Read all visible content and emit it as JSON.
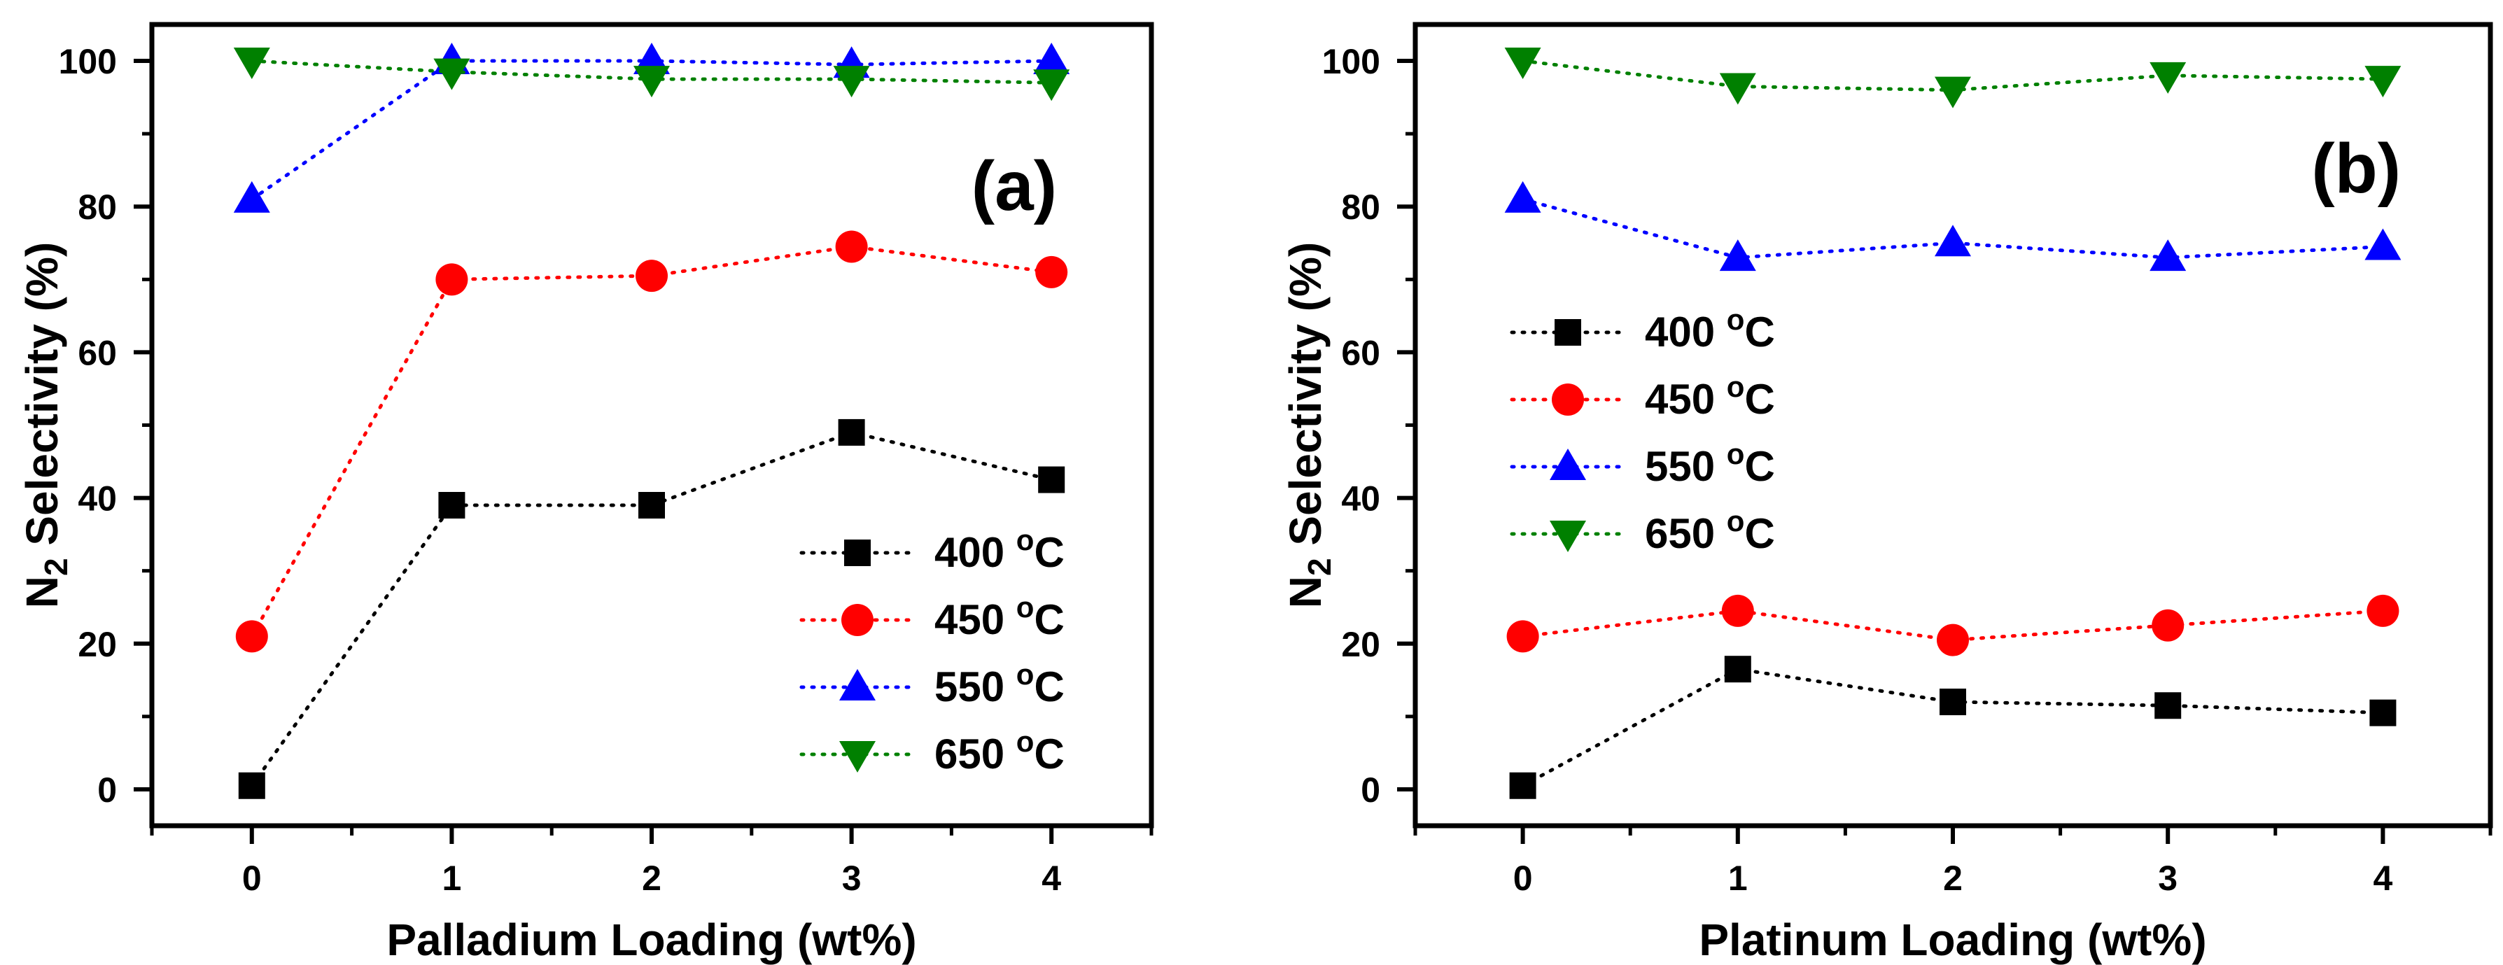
{
  "colors": {
    "s400": "#000000",
    "s450": "#ff0000",
    "s550": "#0000ff",
    "s650": "#008000"
  },
  "chart_data": [
    {
      "type": "scatter",
      "panel_label": "(a)",
      "xlabel": "Palladium Loading (wt%)",
      "ylabel_main": "N",
      "ylabel_sub": "2",
      "ylabel_rest": " Selectivity (%)",
      "xlim": [
        -0.5,
        4.5
      ],
      "ylim": [
        -5,
        105
      ],
      "x_ticks": [
        "0",
        "1",
        "2",
        "3",
        "4"
      ],
      "y_ticks": [
        "0",
        "20",
        "40",
        "60",
        "80",
        "100"
      ],
      "x": [
        0,
        1,
        2,
        3,
        4
      ],
      "legend_position": "bottom-right",
      "series": [
        {
          "name": "400",
          "name_unit": "C",
          "name_deg": "o",
          "marker": "square",
          "color": "#000000",
          "values": [
            0.5,
            39,
            39,
            49,
            42.5
          ]
        },
        {
          "name": "450",
          "name_unit": "C",
          "name_deg": "o",
          "marker": "circle",
          "color": "#ff0000",
          "values": [
            21,
            70,
            70.5,
            74.5,
            71
          ]
        },
        {
          "name": "550",
          "name_unit": "C",
          "name_deg": "o",
          "marker": "triangle-up",
          "color": "#0000ff",
          "values": [
            81,
            100,
            100,
            99.5,
            100
          ]
        },
        {
          "name": "650",
          "name_unit": "C",
          "name_deg": "o",
          "marker": "triangle-down",
          "color": "#008000",
          "values": [
            100,
            98.5,
            97.5,
            97.5,
            97
          ]
        }
      ]
    },
    {
      "type": "scatter",
      "panel_label": "(b)",
      "xlabel": "Platinum Loading (wt%)",
      "ylabel_main": "N",
      "ylabel_sub": "2",
      "ylabel_rest": " Selectivity (%)",
      "xlim": [
        -0.5,
        4.5
      ],
      "ylim": [
        -5,
        105
      ],
      "x_ticks": [
        "0",
        "1",
        "2",
        "3",
        "4"
      ],
      "y_ticks": [
        "0",
        "20",
        "40",
        "60",
        "80",
        "100"
      ],
      "x": [
        0,
        1,
        2,
        3,
        4
      ],
      "legend_position": "middle-left",
      "series": [
        {
          "name": "400",
          "name_unit": "C",
          "name_deg": "o",
          "marker": "square",
          "color": "#000000",
          "values": [
            0.5,
            16.5,
            12,
            11.5,
            10.5
          ]
        },
        {
          "name": "450",
          "name_unit": "C",
          "name_deg": "o",
          "marker": "circle",
          "color": "#ff0000",
          "values": [
            21,
            24.5,
            20.5,
            22.5,
            24.5
          ]
        },
        {
          "name": "550",
          "name_unit": "C",
          "name_deg": "o",
          "marker": "triangle-up",
          "color": "#0000ff",
          "values": [
            81,
            73,
            75,
            73,
            74.5
          ]
        },
        {
          "name": "650",
          "name_unit": "C",
          "name_deg": "o",
          "marker": "triangle-down",
          "color": "#008000",
          "values": [
            100,
            96.5,
            96,
            98,
            97.5
          ]
        }
      ]
    }
  ]
}
